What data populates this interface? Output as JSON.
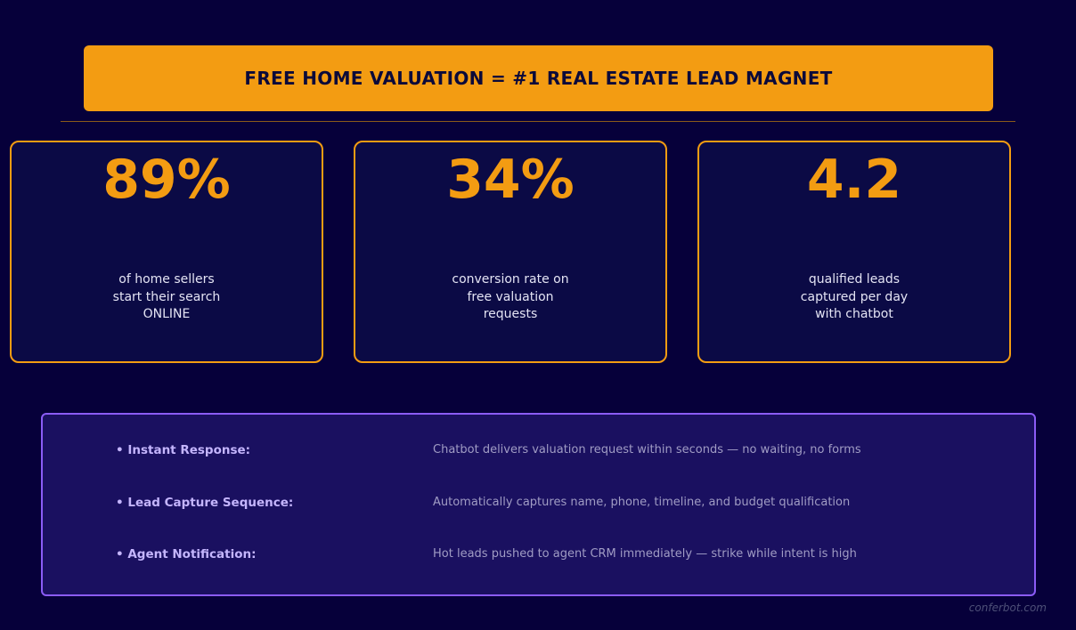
{
  "header": {
    "title": "FREE HOME VALUATION = #1 REAL ESTATE LEAD MAGNET"
  },
  "stats": [
    {
      "value": "89%",
      "lines": [
        "of home sellers",
        "start their search",
        "ONLINE"
      ]
    },
    {
      "value": "34%",
      "lines": [
        "conversion rate on",
        "free valuation",
        "requests"
      ]
    },
    {
      "value": "4.2",
      "lines": [
        "qualified leads",
        "captured per day",
        "with chatbot"
      ]
    }
  ],
  "features": [
    {
      "label": "Instant Response:",
      "text": "Chatbot delivers valuation request within seconds — no waiting, no forms"
    },
    {
      "label": "Lead Capture Sequence:",
      "text": "Automatically captures name, phone, timeline, and budget qualification"
    },
    {
      "label": "Agent Notification:",
      "text": "Hot leads pushed to agent CRM immediately — strike while intent is high"
    }
  ],
  "footer": {
    "watermark": "conferbot.com"
  }
}
